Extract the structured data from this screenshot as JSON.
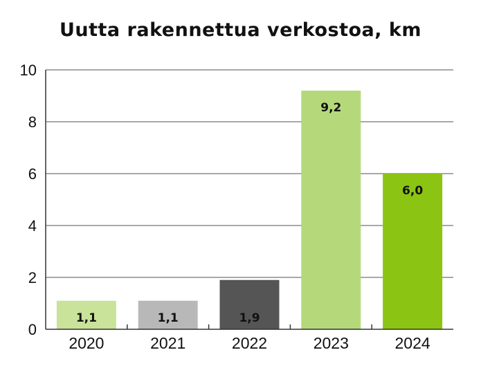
{
  "chart_data": {
    "type": "bar",
    "title": "Uutta rakennettua verkostoa, km",
    "categories": [
      "2020",
      "2021",
      "2022",
      "2023",
      "2024"
    ],
    "values": [
      1.1,
      1.1,
      1.9,
      9.2,
      6.0
    ],
    "data_labels": [
      "1,1",
      "1,1",
      "1,9",
      "9,2",
      "6,0"
    ],
    "colors": [
      "#c9e39a",
      "#b8b8b8",
      "#555555",
      "#b5d97a",
      "#8cc414"
    ],
    "ylim": [
      0,
      10
    ],
    "yticks": [
      0,
      2,
      4,
      6,
      8,
      10
    ],
    "ytick_labels": [
      "0",
      "2",
      "4",
      "6",
      "8",
      "10"
    ],
    "grid": true,
    "legend": "none"
  }
}
